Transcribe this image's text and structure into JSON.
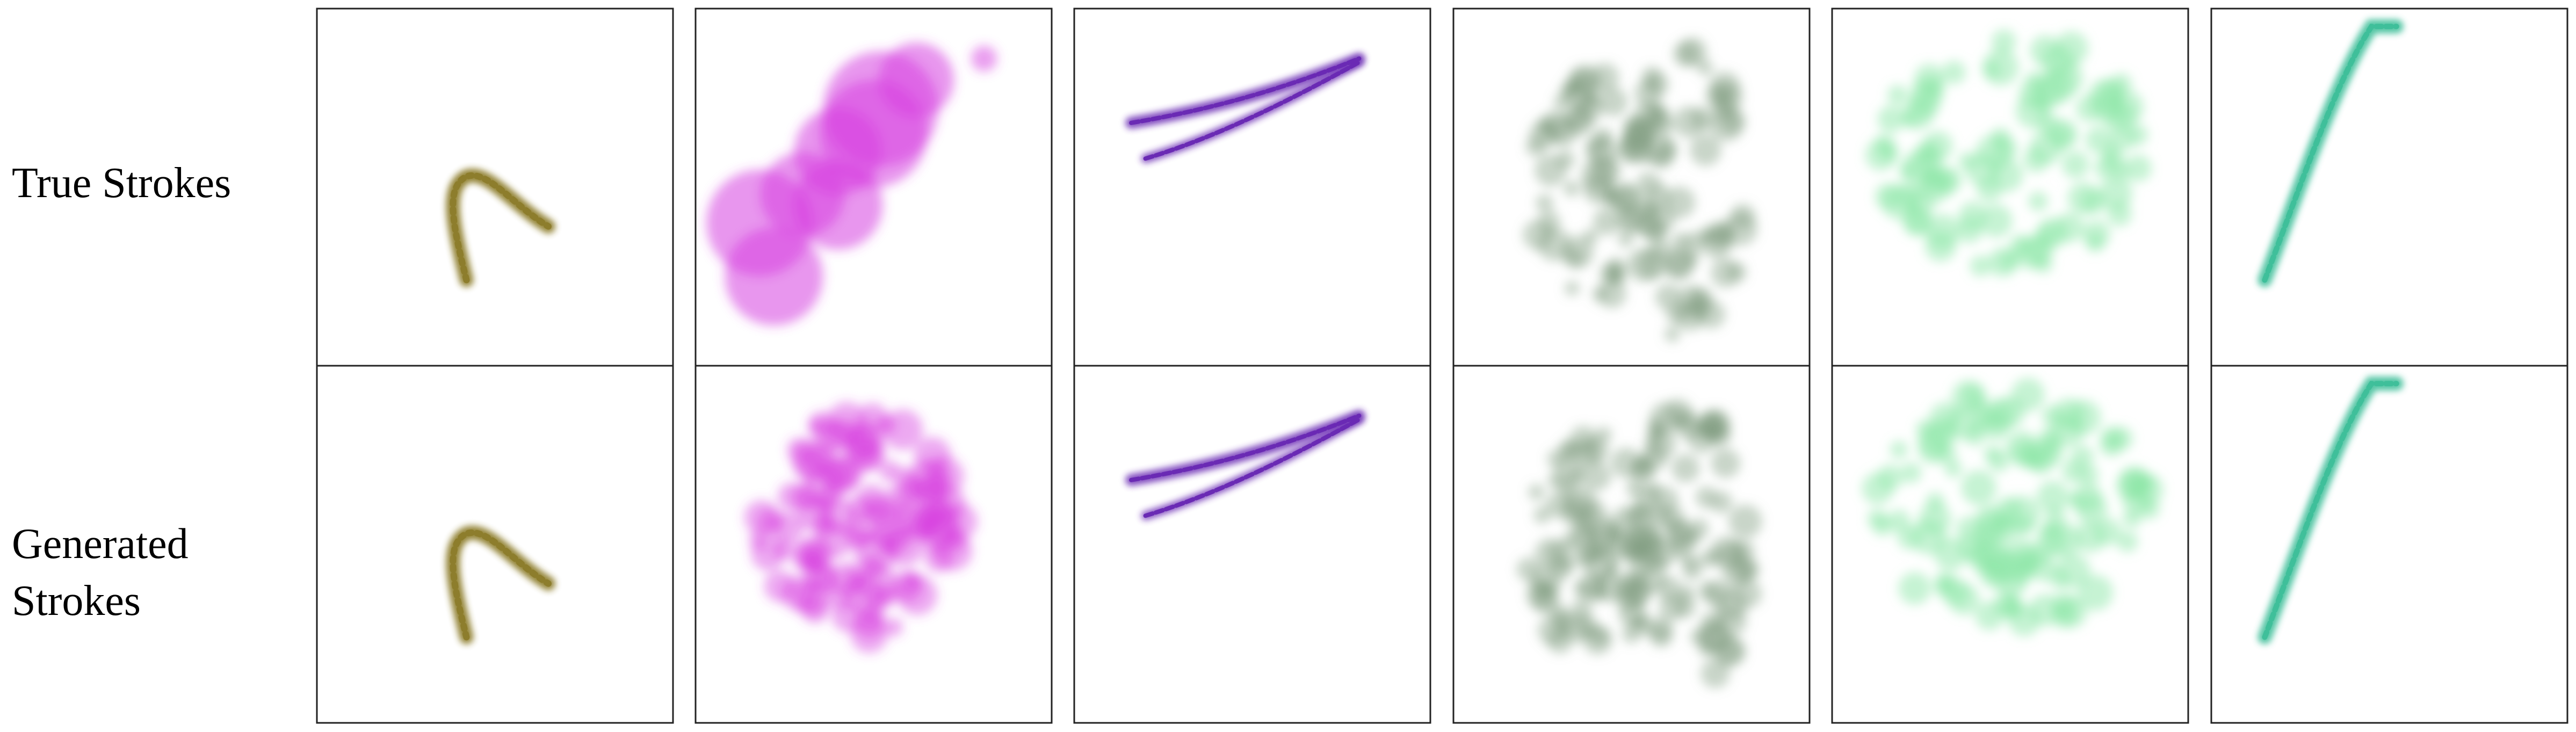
{
  "figure": {
    "row_labels": {
      "true": "True Strokes",
      "generated": "Generated\nStrokes"
    },
    "strokes": [
      {
        "name": "olive-hook-stroke",
        "color": "#8d7d2c",
        "style": "textured-hook"
      },
      {
        "name": "magenta-blob-stroke",
        "color": "#d63ee0",
        "style": "soft-blob"
      },
      {
        "name": "purple-double-line",
        "color": "#6a2ab4",
        "style": "double-line"
      },
      {
        "name": "gray-green-splotch",
        "color": "#7e9a7e",
        "style": "two-lobe-splotch"
      },
      {
        "name": "mint-wide-stroke",
        "color": "#8ee8a8",
        "style": "wide-blob"
      },
      {
        "name": "teal-curve-stroke",
        "color": "#3fbf9a",
        "style": "thin-curve"
      }
    ]
  }
}
